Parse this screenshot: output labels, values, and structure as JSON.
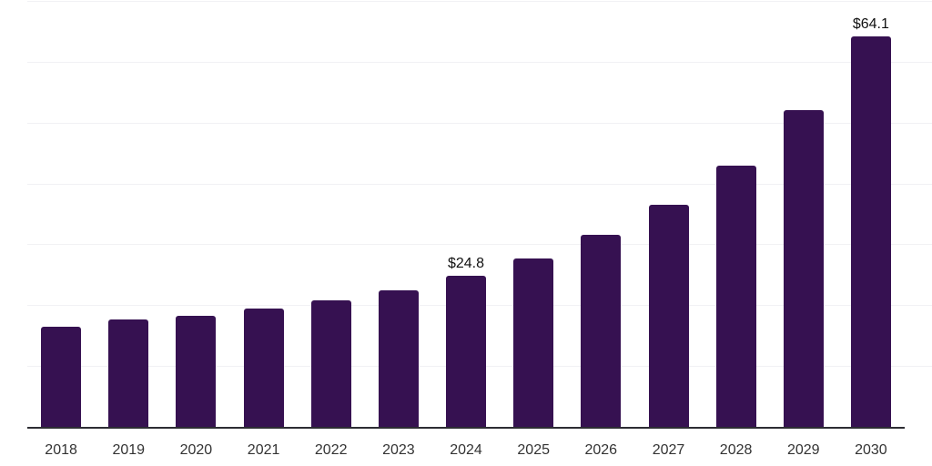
{
  "chart": {
    "background_color": "#ffffff",
    "bar_color": "#361151",
    "grid_color": "#f1f1f4",
    "axis_color": "#2d2d33",
    "tick_label_color": "#333333",
    "value_label_color": "#111111"
  },
  "chart_data": {
    "type": "bar",
    "title": "",
    "xlabel": "",
    "ylabel": "",
    "categories": [
      "2018",
      "2019",
      "2020",
      "2021",
      "2022",
      "2023",
      "2024",
      "2025",
      "2026",
      "2027",
      "2028",
      "2029",
      "2030"
    ],
    "values": [
      16.5,
      17.7,
      18.3,
      19.4,
      20.8,
      22.5,
      24.8,
      27.7,
      31.6,
      36.5,
      43.0,
      52.0,
      64.1
    ],
    "data_labels": {
      "2024": "$24.8",
      "2030": "$64.1"
    },
    "ylim": [
      0,
      70
    ],
    "gridline_values": [
      10,
      20,
      30,
      40,
      50,
      60,
      70
    ],
    "grid": "horizontal",
    "legend": "none",
    "y_tick_labels_visible": false
  }
}
